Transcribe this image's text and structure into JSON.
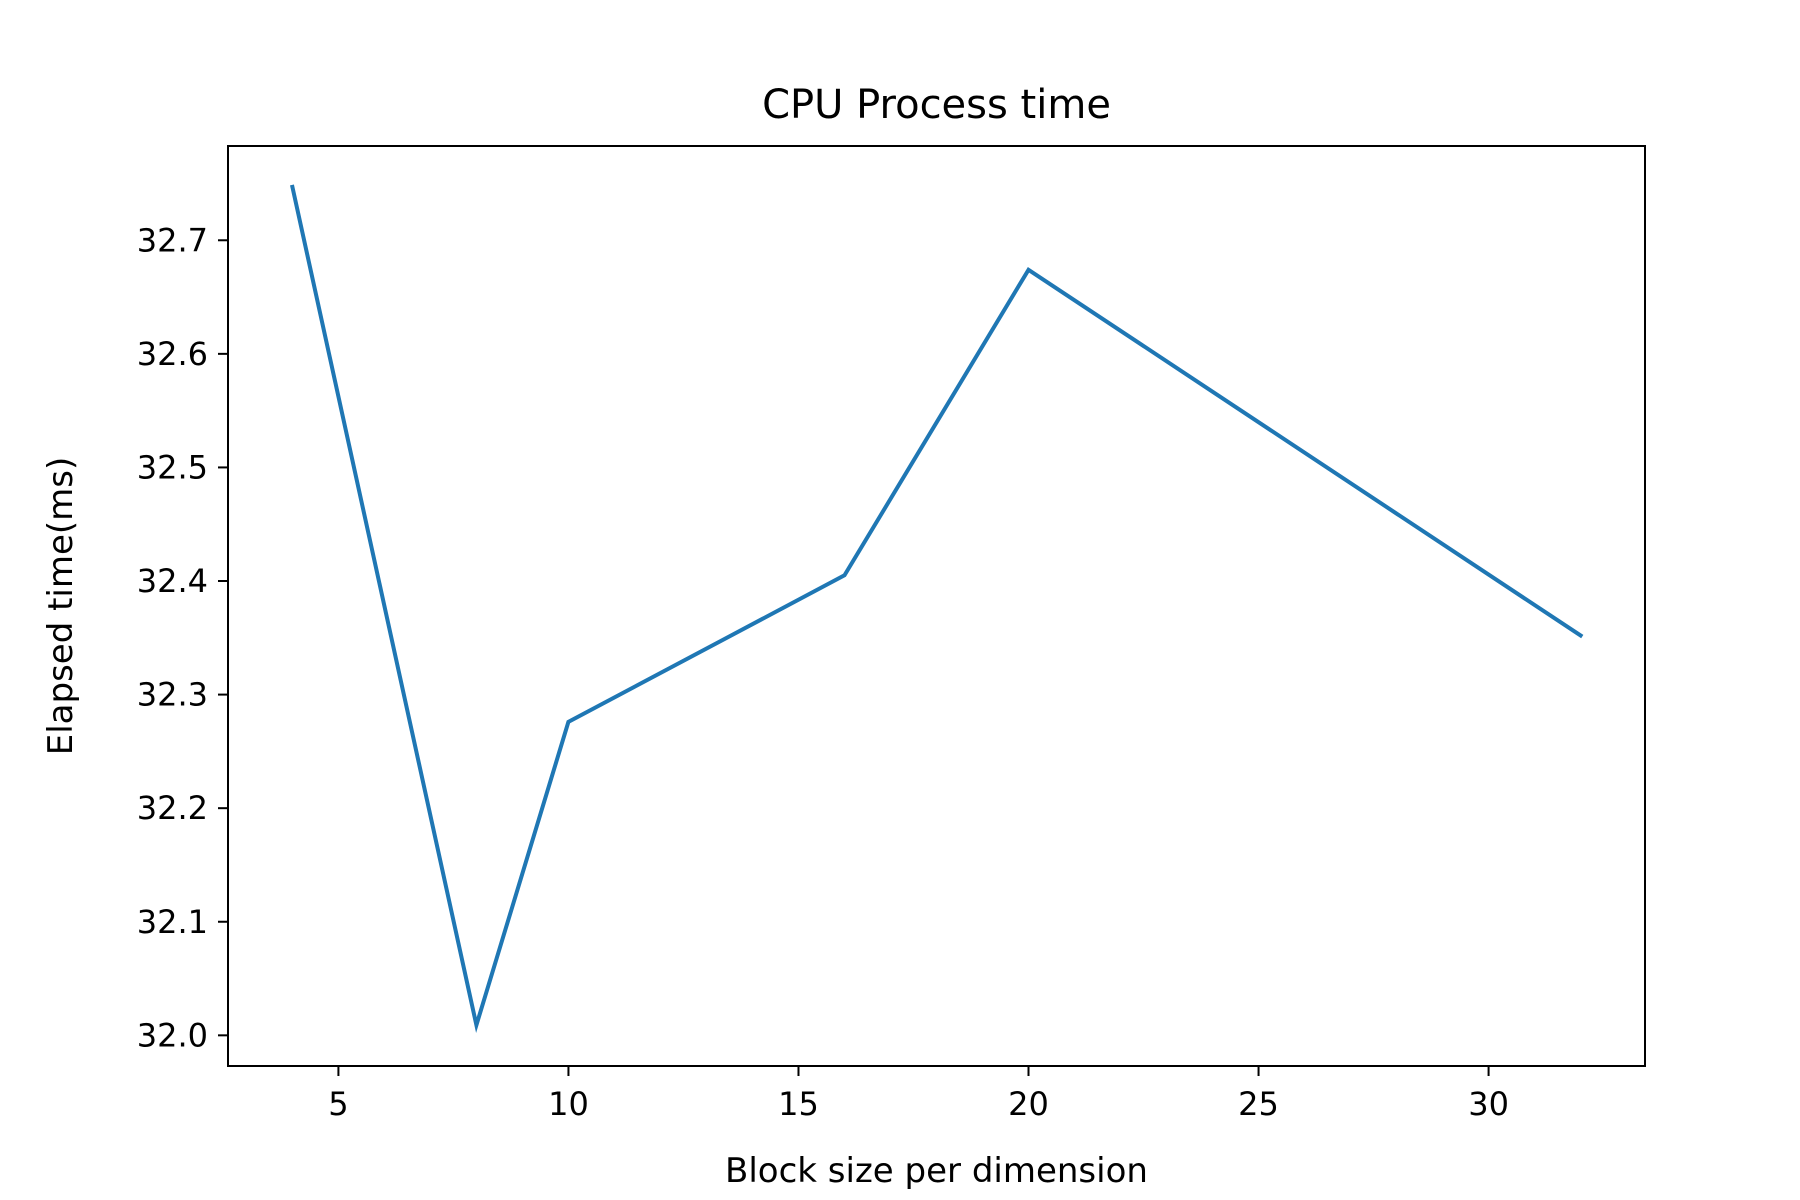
{
  "chart_data": {
    "type": "line",
    "title": "CPU Process time",
    "xlabel": "Block size per dimension",
    "ylabel": "Elapsed time(ms)",
    "xlim": [
      2.6,
      33.4
    ],
    "ylim": [
      31.973,
      32.783
    ],
    "xticks": [
      5,
      10,
      15,
      20,
      25,
      30
    ],
    "yticks": [
      32.0,
      32.1,
      32.2,
      32.3,
      32.4,
      32.5,
      32.6,
      32.7
    ],
    "grid": false,
    "legend": "none",
    "series": [
      {
        "color": "#1f77b4",
        "x": [
          4,
          8,
          10,
          16,
          20,
          32
        ],
        "y": [
          32.747,
          32.009,
          32.276,
          32.405,
          32.674,
          32.352
        ]
      }
    ]
  }
}
